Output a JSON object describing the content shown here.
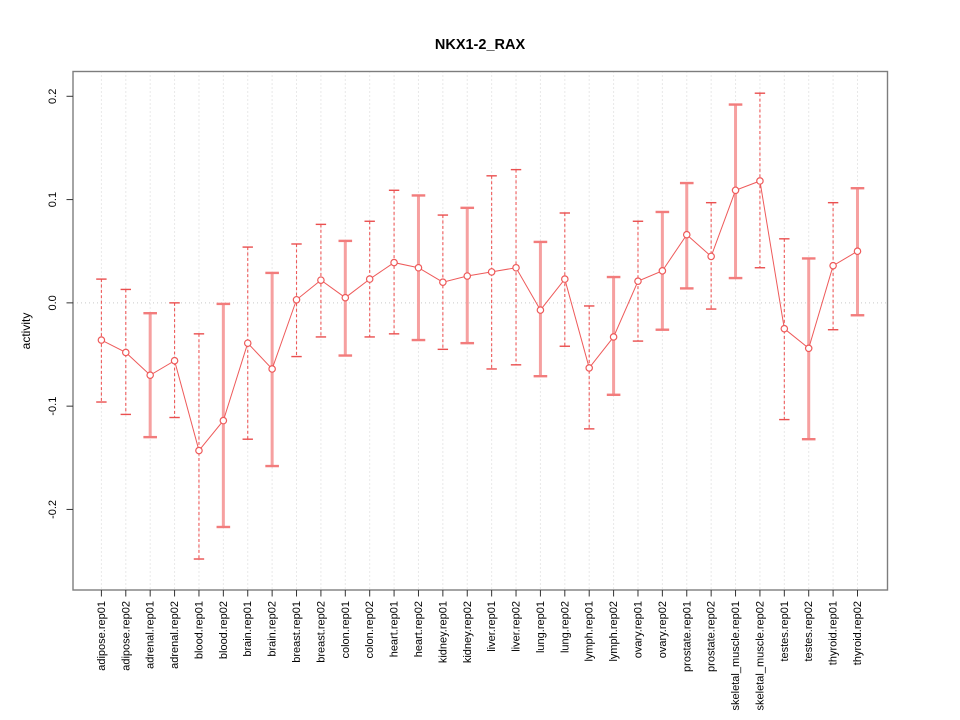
{
  "figure": {
    "background": "#ffffff"
  },
  "chart_data": {
    "type": "scatter",
    "subtype": "point-estimates-with-error-bars",
    "title": "NKX1-2_RAX",
    "xlabel": "",
    "ylabel": "activity",
    "ylim": [
      -0.278,
      0.224
    ],
    "yticks": [
      0.2,
      0.1,
      0.0,
      -0.1,
      -0.2
    ],
    "grid": {
      "vertical_dotted_per_category": true,
      "horizontal_zero_dotted_line": true
    },
    "legend": "none",
    "marker": "open-circle",
    "connected": true,
    "series": [
      {
        "name": "activity",
        "points": [
          {
            "label": "adipose.rep01",
            "value": -0.036,
            "lo": -0.096,
            "hi": 0.023,
            "bar": "dashed"
          },
          {
            "label": "adipose.rep02",
            "value": -0.048,
            "lo": -0.108,
            "hi": 0.013,
            "bar": "dashed"
          },
          {
            "label": "adrenal.rep01",
            "value": -0.07,
            "lo": -0.13,
            "hi": -0.01,
            "bar": "solid"
          },
          {
            "label": "adrenal.rep02",
            "value": -0.056,
            "lo": -0.111,
            "hi": 0.0,
            "bar": "dashed"
          },
          {
            "label": "blood.rep01",
            "value": -0.143,
            "lo": -0.248,
            "hi": -0.03,
            "bar": "dashed"
          },
          {
            "label": "blood.rep02",
            "value": -0.114,
            "lo": -0.217,
            "hi": -0.001,
            "bar": "solid"
          },
          {
            "label": "brain.rep01",
            "value": -0.039,
            "lo": -0.132,
            "hi": 0.054,
            "bar": "dashed"
          },
          {
            "label": "brain.rep02",
            "value": -0.064,
            "lo": -0.158,
            "hi": 0.029,
            "bar": "solid"
          },
          {
            "label": "breast.rep01",
            "value": 0.003,
            "lo": -0.052,
            "hi": 0.057,
            "bar": "dashed"
          },
          {
            "label": "breast.rep02",
            "value": 0.022,
            "lo": -0.033,
            "hi": 0.076,
            "bar": "dashed"
          },
          {
            "label": "colon.rep01",
            "value": 0.005,
            "lo": -0.051,
            "hi": 0.06,
            "bar": "solid"
          },
          {
            "label": "colon.rep02",
            "value": 0.023,
            "lo": -0.033,
            "hi": 0.079,
            "bar": "dashed"
          },
          {
            "label": "heart.rep01",
            "value": 0.039,
            "lo": -0.03,
            "hi": 0.109,
            "bar": "dashed"
          },
          {
            "label": "heart.rep02",
            "value": 0.034,
            "lo": -0.036,
            "hi": 0.104,
            "bar": "solid"
          },
          {
            "label": "kidney.rep01",
            "value": 0.02,
            "lo": -0.045,
            "hi": 0.085,
            "bar": "dashed"
          },
          {
            "label": "kidney.rep02",
            "value": 0.026,
            "lo": -0.039,
            "hi": 0.092,
            "bar": "solid"
          },
          {
            "label": "liver.rep01",
            "value": 0.03,
            "lo": -0.064,
            "hi": 0.123,
            "bar": "dashed"
          },
          {
            "label": "liver.rep02",
            "value": 0.034,
            "lo": -0.06,
            "hi": 0.129,
            "bar": "dashed"
          },
          {
            "label": "lung.rep01",
            "value": -0.007,
            "lo": -0.071,
            "hi": 0.059,
            "bar": "solid"
          },
          {
            "label": "lung.rep02",
            "value": 0.023,
            "lo": -0.042,
            "hi": 0.087,
            "bar": "dashed"
          },
          {
            "label": "lymph.rep01",
            "value": -0.063,
            "lo": -0.122,
            "hi": -0.003,
            "bar": "dashed"
          },
          {
            "label": "lymph.rep02",
            "value": -0.033,
            "lo": -0.089,
            "hi": 0.025,
            "bar": "solid"
          },
          {
            "label": "ovary.rep01",
            "value": 0.021,
            "lo": -0.037,
            "hi": 0.079,
            "bar": "dashed"
          },
          {
            "label": "ovary.rep02",
            "value": 0.031,
            "lo": -0.026,
            "hi": 0.088,
            "bar": "solid"
          },
          {
            "label": "prostate.rep01",
            "value": 0.066,
            "lo": 0.014,
            "hi": 0.116,
            "bar": "solid"
          },
          {
            "label": "prostate.rep02",
            "value": 0.045,
            "lo": -0.006,
            "hi": 0.097,
            "bar": "dashed"
          },
          {
            "label": "skeletal_muscle.rep01",
            "value": 0.109,
            "lo": 0.024,
            "hi": 0.192,
            "bar": "solid"
          },
          {
            "label": "skeletal_muscle.rep02",
            "value": 0.118,
            "lo": 0.034,
            "hi": 0.203,
            "bar": "dashed"
          },
          {
            "label": "testes.rep01",
            "value": -0.025,
            "lo": -0.113,
            "hi": 0.062,
            "bar": "dashed"
          },
          {
            "label": "testes.rep02",
            "value": -0.044,
            "lo": -0.132,
            "hi": 0.043,
            "bar": "solid"
          },
          {
            "label": "thyroid.rep01",
            "value": 0.036,
            "lo": -0.026,
            "hi": 0.097,
            "bar": "dashed"
          },
          {
            "label": "thyroid.rep02",
            "value": 0.05,
            "lo": -0.012,
            "hi": 0.111,
            "bar": "solid"
          }
        ]
      }
    ],
    "colors": {
      "point": "#ee5a5a",
      "series_line": "#ee5a5a",
      "errorbar_dashed": "#ee5a5a",
      "errorbar_dashed_cap": "#ea4f4f",
      "errorbar_solid": "#f6a0a0",
      "errorbar_solid_cap": "#f27c7c",
      "grid": "#d2d2d2",
      "zero_line": "#c9c9c9",
      "frame": "#7d7d7d",
      "tick": "#333333",
      "text": "#000000",
      "background": "#ffffff"
    }
  }
}
